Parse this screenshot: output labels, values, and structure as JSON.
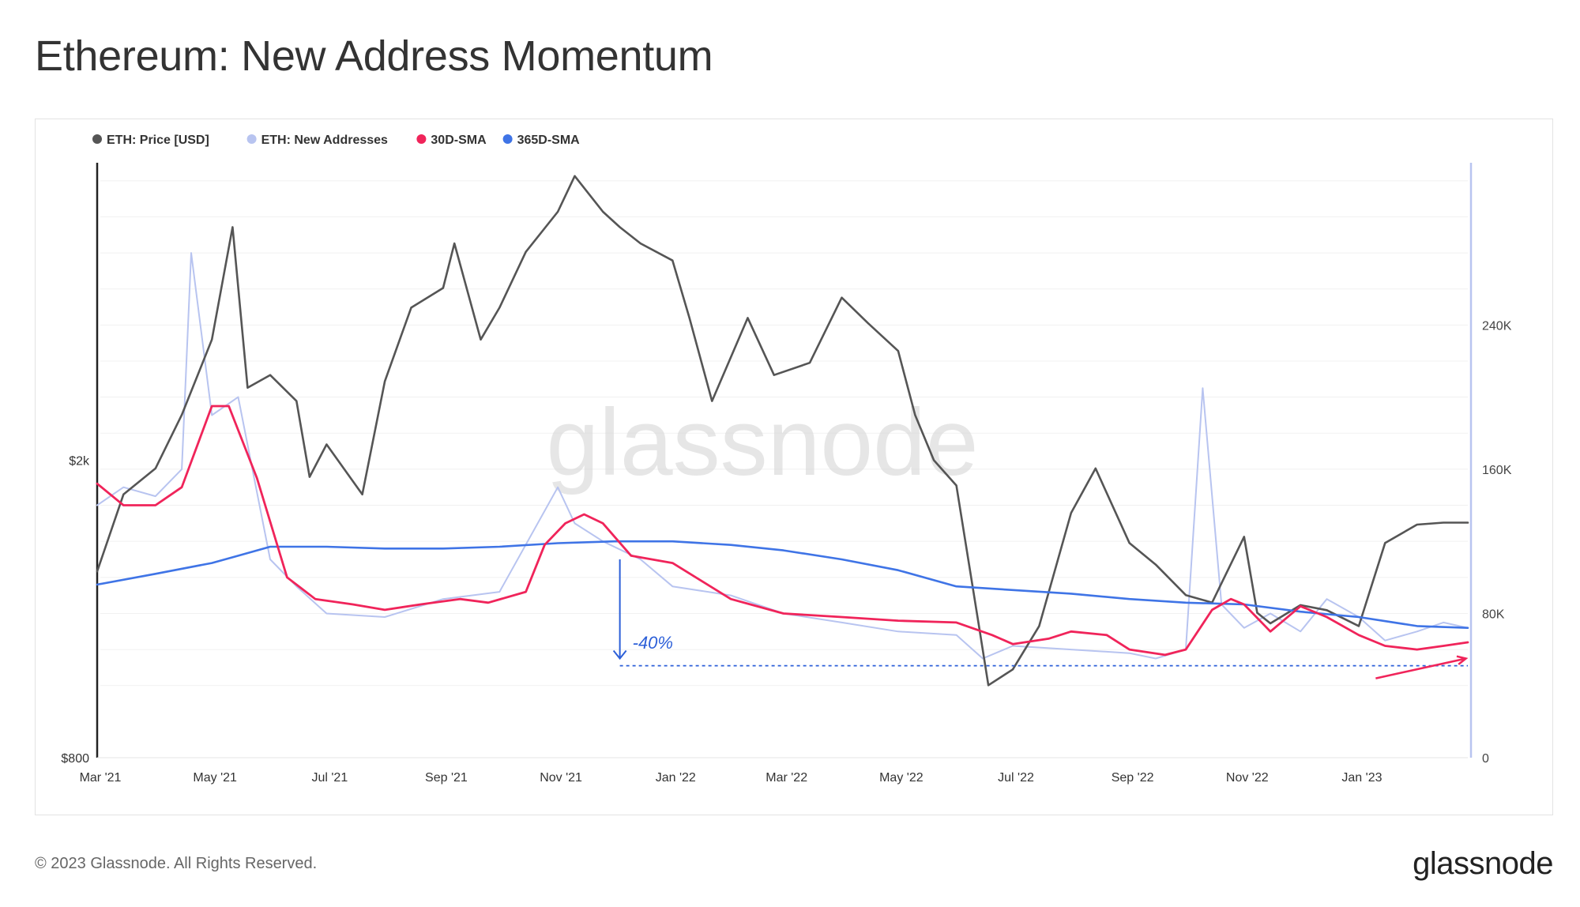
{
  "page": {
    "title": "Ethereum: New Address Momentum",
    "copyright": "© 2023 Glassnode. All Rights Reserved.",
    "logo_text": "glassnode",
    "watermark": "glassnode"
  },
  "chart_data": {
    "type": "line",
    "title": "Ethereum: New Address Momentum",
    "x_range": [
      "2021-03-01",
      "2023-02-28"
    ],
    "x_ticks": [
      "Mar '21",
      "May '21",
      "Jul '21",
      "Sep '21",
      "Nov '21",
      "Jan '22",
      "Mar '22",
      "May '22",
      "Jul '22",
      "Sep '22",
      "Nov '22",
      "Jan '23"
    ],
    "x_tick_dates": [
      "2021-03-01",
      "2021-05-01",
      "2021-07-01",
      "2021-09-01",
      "2021-11-01",
      "2022-01-01",
      "2022-03-01",
      "2022-05-01",
      "2022-07-01",
      "2022-09-01",
      "2022-11-01",
      "2023-01-01"
    ],
    "y_left": {
      "scale": "log",
      "range": [
        800,
        5000
      ],
      "ticks": [
        800,
        2000
      ],
      "tick_labels": [
        "$800",
        "$2k"
      ]
    },
    "y_right": {
      "scale": "linear",
      "range": [
        0,
        330000
      ],
      "ticks": [
        0,
        80000,
        160000,
        240000
      ],
      "tick_labels": [
        "0",
        "80K",
        "160K",
        "240K"
      ]
    },
    "grid": true,
    "legend": {
      "placement": "top-left",
      "entries": [
        {
          "name": "ETH: Price [USD]",
          "color": "#555555"
        },
        {
          "name": "ETH: New Addresses",
          "color": "#b8c4f0"
        },
        {
          "name": "30D-SMA",
          "color": "#f0245a"
        },
        {
          "name": "365D-SMA",
          "color": "#3f74e6"
        }
      ]
    },
    "series": [
      {
        "name": "ETH: Price [USD]",
        "axis": "left",
        "color": "#555555",
        "x": [
          "2021-03-01",
          "2021-03-15",
          "2021-04-01",
          "2021-04-15",
          "2021-05-01",
          "2021-05-12",
          "2021-05-20",
          "2021-06-01",
          "2021-06-15",
          "2021-06-22",
          "2021-07-01",
          "2021-07-20",
          "2021-08-01",
          "2021-08-15",
          "2021-09-01",
          "2021-09-07",
          "2021-09-21",
          "2021-10-01",
          "2021-10-15",
          "2021-11-01",
          "2021-11-10",
          "2021-11-25",
          "2021-12-04",
          "2021-12-15",
          "2022-01-01",
          "2022-01-10",
          "2022-01-22",
          "2022-02-10",
          "2022-02-24",
          "2022-03-15",
          "2022-04-01",
          "2022-04-15",
          "2022-05-01",
          "2022-05-10",
          "2022-05-20",
          "2022-06-01",
          "2022-06-13",
          "2022-06-18",
          "2022-07-01",
          "2022-07-15",
          "2022-08-01",
          "2022-08-14",
          "2022-09-01",
          "2022-09-15",
          "2022-10-01",
          "2022-10-15",
          "2022-11-01",
          "2022-11-08",
          "2022-11-15",
          "2022-12-01",
          "2022-12-15",
          "2023-01-01",
          "2023-01-15",
          "2023-02-01",
          "2023-02-15",
          "2023-02-28"
        ],
        "values": [
          1420,
          1800,
          1950,
          2300,
          2900,
          4100,
          2500,
          2600,
          2400,
          1900,
          2100,
          1800,
          2550,
          3200,
          3400,
          3900,
          2900,
          3200,
          3800,
          4300,
          4800,
          4300,
          4100,
          3900,
          3700,
          3100,
          2400,
          3100,
          2600,
          2700,
          3300,
          3050,
          2800,
          2300,
          2000,
          1850,
          1200,
          1000,
          1050,
          1200,
          1700,
          1950,
          1550,
          1450,
          1320,
          1290,
          1580,
          1250,
          1210,
          1280,
          1260,
          1200,
          1550,
          1640,
          1650,
          1650
        ]
      },
      {
        "name": "ETH: New Addresses",
        "axis": "right",
        "color": "#b8c4f0",
        "x": [
          "2021-03-01",
          "2021-03-15",
          "2021-04-01",
          "2021-04-15",
          "2021-04-20",
          "2021-05-01",
          "2021-05-15",
          "2021-06-01",
          "2021-06-15",
          "2021-07-01",
          "2021-08-01",
          "2021-09-01",
          "2021-10-01",
          "2021-11-01",
          "2021-11-10",
          "2021-11-25",
          "2021-12-15",
          "2022-01-01",
          "2022-02-01",
          "2022-03-01",
          "2022-04-01",
          "2022-05-01",
          "2022-06-01",
          "2022-06-15",
          "2022-07-01",
          "2022-08-01",
          "2022-09-01",
          "2022-09-15",
          "2022-10-01",
          "2022-10-10",
          "2022-10-20",
          "2022-11-01",
          "2022-11-15",
          "2022-12-01",
          "2022-12-15",
          "2023-01-01",
          "2023-01-15",
          "2023-02-01",
          "2023-02-15",
          "2023-02-28"
        ],
        "values": [
          140000,
          150000,
          145000,
          160000,
          280000,
          190000,
          200000,
          110000,
          95000,
          80000,
          78000,
          88000,
          92000,
          150000,
          130000,
          120000,
          110000,
          95000,
          90000,
          80000,
          75000,
          70000,
          68000,
          55000,
          62000,
          60000,
          58000,
          55000,
          60000,
          205000,
          85000,
          72000,
          80000,
          70000,
          88000,
          78000,
          65000,
          70000,
          75000,
          72000
        ]
      },
      {
        "name": "30D-SMA",
        "axis": "right",
        "color": "#f0245a",
        "x": [
          "2021-03-01",
          "2021-03-15",
          "2021-04-01",
          "2021-04-15",
          "2021-05-01",
          "2021-05-10",
          "2021-05-25",
          "2021-06-10",
          "2021-06-25",
          "2021-07-15",
          "2021-08-01",
          "2021-08-20",
          "2021-09-10",
          "2021-09-25",
          "2021-10-15",
          "2021-10-25",
          "2021-11-05",
          "2021-11-15",
          "2021-11-25",
          "2021-12-10",
          "2022-01-01",
          "2022-02-01",
          "2022-03-01",
          "2022-04-01",
          "2022-05-01",
          "2022-06-01",
          "2022-06-20",
          "2022-07-01",
          "2022-07-20",
          "2022-08-01",
          "2022-08-20",
          "2022-09-01",
          "2022-09-20",
          "2022-10-01",
          "2022-10-15",
          "2022-10-25",
          "2022-11-01",
          "2022-11-15",
          "2022-12-01",
          "2022-12-15",
          "2023-01-01",
          "2023-01-15",
          "2023-02-01",
          "2023-02-15",
          "2023-02-28"
        ],
        "values": [
          152000,
          140000,
          140000,
          150000,
          195000,
          195000,
          155000,
          100000,
          88000,
          85000,
          82000,
          85000,
          88000,
          86000,
          92000,
          118000,
          130000,
          135000,
          130000,
          112000,
          108000,
          88000,
          80000,
          78000,
          76000,
          75000,
          68000,
          63000,
          66000,
          70000,
          68000,
          60000,
          57000,
          60000,
          82000,
          88000,
          85000,
          70000,
          84000,
          78000,
          68000,
          62000,
          60000,
          62000,
          64000
        ]
      },
      {
        "name": "365D-SMA",
        "axis": "right",
        "color": "#3f74e6",
        "x": [
          "2021-03-01",
          "2021-04-01",
          "2021-05-01",
          "2021-05-15",
          "2021-06-01",
          "2021-07-01",
          "2021-08-01",
          "2021-09-01",
          "2021-10-01",
          "2021-11-01",
          "2021-12-01",
          "2022-01-01",
          "2022-02-01",
          "2022-03-01",
          "2022-04-01",
          "2022-05-01",
          "2022-06-01",
          "2022-07-01",
          "2022-08-01",
          "2022-09-01",
          "2022-10-01",
          "2022-11-01",
          "2022-12-01",
          "2023-01-01",
          "2023-02-01",
          "2023-02-28"
        ],
        "values": [
          96000,
          102000,
          108000,
          112000,
          117000,
          117000,
          116000,
          116000,
          117000,
          119000,
          120000,
          120000,
          118000,
          115000,
          110000,
          104000,
          95000,
          93000,
          91000,
          88000,
          86000,
          85000,
          81000,
          78000,
          73000,
          72000
        ]
      }
    ],
    "annotations": [
      {
        "type": "arrow",
        "label": "-40%",
        "color": "#2c5fd8",
        "from": {
          "x": "2021-12-04",
          "y": 110000
        },
        "to": {
          "x": "2021-12-04",
          "y": 55000
        }
      },
      {
        "type": "hline",
        "style": "dashed",
        "color": "#2c5fd8",
        "y": 51000,
        "x_from": "2021-12-04",
        "x_to": "2023-02-28"
      },
      {
        "type": "arrow",
        "color": "#f0245a",
        "from": {
          "x": "2023-01-10",
          "y": 44000
        },
        "to": {
          "x": "2023-02-27",
          "y": 55000
        }
      }
    ]
  }
}
